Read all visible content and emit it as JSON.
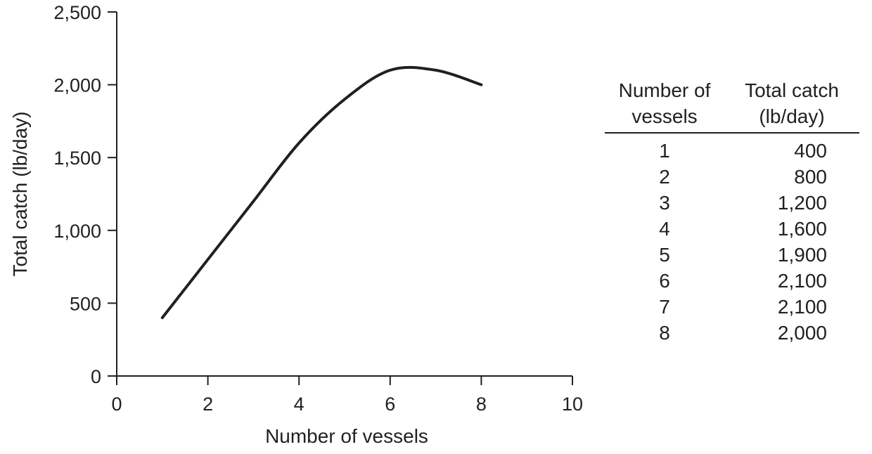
{
  "chart_data": {
    "type": "line",
    "xlabel": "Number of vessels",
    "ylabel": "Total catch (lb/day)",
    "xlim": [
      0,
      10
    ],
    "ylim": [
      0,
      2500
    ],
    "x_ticks": [
      "0",
      "2",
      "4",
      "6",
      "8",
      "10"
    ],
    "y_ticks": [
      "0",
      "500",
      "1,000",
      "1,500",
      "2,000",
      "2,500"
    ],
    "grid": false,
    "series": [
      {
        "x": [
          1,
          2,
          3,
          4,
          5,
          6,
          7,
          8
        ],
        "values": [
          400,
          800,
          1200,
          1600,
          1900,
          2100,
          2100,
          2000
        ],
        "color": "#231f20"
      }
    ]
  },
  "table": {
    "headers": [
      "Number of\nvessels",
      "Total catch\n(lb/day)"
    ],
    "rows": [
      [
        "1",
        "400"
      ],
      [
        "2",
        "800"
      ],
      [
        "3",
        "1,200"
      ],
      [
        "4",
        "1,600"
      ],
      [
        "5",
        "1,900"
      ],
      [
        "6",
        "2,100"
      ],
      [
        "7",
        "2,100"
      ],
      [
        "8",
        "2,000"
      ]
    ]
  }
}
